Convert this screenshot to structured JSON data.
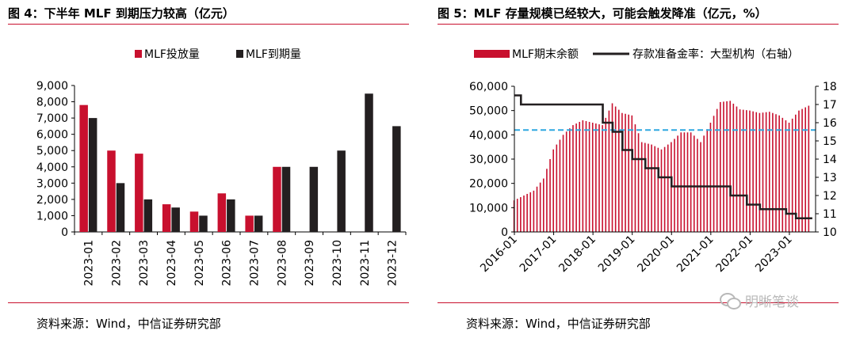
{
  "left_panel": {
    "title": "图 4：下半年 MLF 到期压力较高（亿元）",
    "source": "资料来源：Wind，中信证券研究部"
  },
  "right_panel": {
    "title": "图 5：MLF 存量规模已经较大，可能会触发降准（亿元，%）",
    "source": "资料来源：Wind，中信证券研究部"
  },
  "watermark": {
    "text": "明晰笔谈",
    "icon": "wechat-icon"
  },
  "colors": {
    "red": "#c8102e",
    "dark": "#231f20",
    "dashed": "#2fa8e0",
    "rule": "#c8102e"
  },
  "chart_data": [
    {
      "type": "bar",
      "title": "图 4：下半年 MLF 到期压力较高（亿元）",
      "categories": [
        "2023-01",
        "2023-02",
        "2023-03",
        "2023-04",
        "2023-05",
        "2023-06",
        "2023-07",
        "2023-08",
        "2023-09",
        "2023-10",
        "2023-11",
        "2023-12"
      ],
      "series": [
        {
          "name": "MLF投放量",
          "color": "#c8102e",
          "values": [
            7800,
            5000,
            4810,
            1700,
            1250,
            2370,
            1000,
            4000,
            null,
            null,
            null,
            null
          ]
        },
        {
          "name": "MLF到期量",
          "color": "#231f20",
          "values": [
            7000,
            3000,
            2000,
            1500,
            1000,
            2000,
            1000,
            4000,
            4000,
            5000,
            8500,
            6500
          ]
        }
      ],
      "ylim": [
        0,
        9000
      ],
      "yticks": [
        "0",
        "1,000",
        "2,000",
        "3,000",
        "4,000",
        "5,000",
        "6,000",
        "7,000",
        "8,000",
        "9,000"
      ],
      "legend_position": "top"
    },
    {
      "type": "bar",
      "title": "图 5：MLF 存量规模已经较大，可能会触发降准（亿元，%）",
      "series": [
        {
          "name": "MLF期末余额",
          "type": "bar",
          "axis": "left",
          "color": "#c8102e",
          "x": [
            "2016-01",
            "2016-04",
            "2016-07",
            "2016-10",
            "2017-01",
            "2017-04",
            "2017-07",
            "2017-10",
            "2018-01",
            "2018-04",
            "2018-07",
            "2018-10",
            "2019-01",
            "2019-04",
            "2019-07",
            "2019-10",
            "2020-01",
            "2020-04",
            "2020-07",
            "2020-10",
            "2021-01",
            "2021-04",
            "2021-07",
            "2021-10",
            "2022-01",
            "2022-04",
            "2022-07",
            "2022-10",
            "2023-01",
            "2023-04",
            "2023-07"
          ],
          "values": [
            13000,
            15000,
            17000,
            22000,
            34000,
            40000,
            44000,
            46000,
            45000,
            44000,
            53000,
            49000,
            48000,
            37000,
            36000,
            34000,
            37000,
            41000,
            41000,
            37000,
            45000,
            53500,
            54000,
            50500,
            50000,
            49000,
            49500,
            48000,
            45000,
            50000,
            52000
          ]
        },
        {
          "name": "存款准备金率：大型机构（右轴）",
          "type": "line",
          "axis": "right",
          "color": "#231f20",
          "points": [
            [
              "2016-01",
              17.5
            ],
            [
              "2016-03",
              17.0
            ],
            [
              "2018-04",
              16.0
            ],
            [
              "2018-07",
              15.5
            ],
            [
              "2018-10",
              14.5
            ],
            [
              "2019-01",
              14.0
            ],
            [
              "2019-05",
              13.5
            ],
            [
              "2019-09",
              13.0
            ],
            [
              "2020-01",
              12.5
            ],
            [
              "2021-07",
              12.0
            ],
            [
              "2021-12",
              11.5
            ],
            [
              "2022-04",
              11.25
            ],
            [
              "2022-12",
              11.0
            ],
            [
              "2023-03",
              10.75
            ],
            [
              "2023-08",
              10.75
            ]
          ]
        }
      ],
      "reference_line": {
        "style": "dashed",
        "color": "#2fa8e0",
        "y": 42000
      },
      "y_left": {
        "lim": [
          0,
          60000
        ],
        "ticks": [
          "0",
          "10,000",
          "20,000",
          "30,000",
          "40,000",
          "50,000",
          "60,000"
        ]
      },
      "y_right": {
        "lim": [
          10,
          18
        ],
        "ticks": [
          "10",
          "11",
          "12",
          "13",
          "14",
          "15",
          "16",
          "17",
          "18"
        ]
      },
      "x_ticks": [
        "2016-01",
        "2017-01",
        "2018-01",
        "2019-01",
        "2020-01",
        "2021-01",
        "2022-01",
        "2023-01"
      ],
      "legend_position": "top"
    }
  ]
}
